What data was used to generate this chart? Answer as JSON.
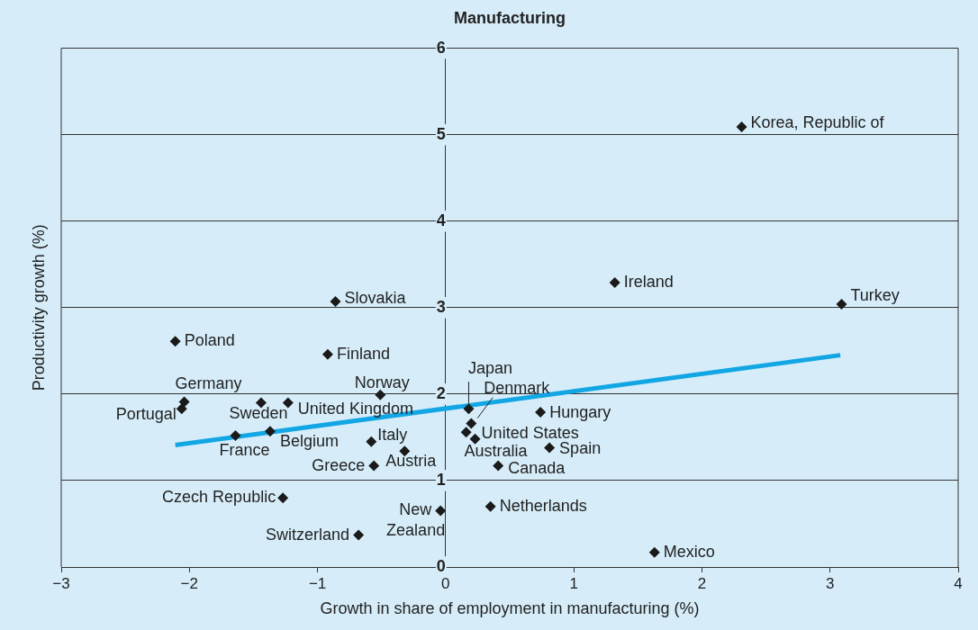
{
  "chart_data": {
    "type": "scatter",
    "title": "Manufacturing",
    "xlabel": "Growth in share of employment in manufacturing (%)",
    "ylabel": "Productivity growth (%)",
    "xlim": [
      -3,
      4
    ],
    "xticks": [
      -3,
      -2,
      -1,
      0,
      1,
      2,
      3,
      4
    ],
    "ylim": [
      0,
      6
    ],
    "yticks": [
      0,
      1,
      2,
      3,
      4,
      5,
      6
    ],
    "grid": "y",
    "legend": false,
    "marker": "diamond",
    "series": [
      {
        "color": "#1a1a1a",
        "x": [
          2.31,
          1.32,
          3.09,
          -0.86,
          -2.11,
          -0.92,
          -2.04,
          -2.06,
          -1.44,
          -1.23,
          -0.51,
          -1.64,
          -1.37,
          -0.58,
          -0.32,
          -0.56,
          -1.27,
          -0.68,
          -0.04,
          0.18,
          0.2,
          0.16,
          0.23,
          0.74,
          0.81,
          0.41,
          0.35,
          1.63
        ],
        "values": [
          5.09,
          3.29,
          3.04,
          3.07,
          2.61,
          2.46,
          1.91,
          1.83,
          1.9,
          1.9,
          1.99,
          1.52,
          1.57,
          1.45,
          1.34,
          1.17,
          0.8,
          0.37,
          0.65,
          1.83,
          1.66,
          1.56,
          1.48,
          1.79,
          1.38,
          1.17,
          0.7,
          0.17
        ]
      },
      {
        "type": "line",
        "marker": "none",
        "color": "#12a6e4",
        "x": [
          -2.11,
          3.08
        ],
        "values": [
          1.41,
          2.45
        ]
      }
    ],
    "annotations": [
      {
        "text": "Korea, Republic of",
        "x": 2.31,
        "y": 5.09
      },
      {
        "text": "Ireland",
        "x": 1.32,
        "y": 3.29
      },
      {
        "text": "Turkey",
        "x": 3.09,
        "y": 3.04
      },
      {
        "text": "Slovakia",
        "x": -0.86,
        "y": 3.07
      },
      {
        "text": "Poland",
        "x": -2.11,
        "y": 2.61
      },
      {
        "text": "Finland",
        "x": -0.92,
        "y": 2.46
      },
      {
        "text": "Germany",
        "x": -2.04,
        "y": 1.91
      },
      {
        "text": "Portugal",
        "x": -2.06,
        "y": 1.83
      },
      {
        "text": "Sweden",
        "x": -1.44,
        "y": 1.9
      },
      {
        "text": "United Kingdom",
        "x": -1.23,
        "y": 1.9
      },
      {
        "text": "Norway",
        "x": -0.51,
        "y": 1.99
      },
      {
        "text": "France",
        "x": -1.64,
        "y": 1.52
      },
      {
        "text": "Belgium",
        "x": -1.37,
        "y": 1.57
      },
      {
        "text": "Italy",
        "x": -0.58,
        "y": 1.45
      },
      {
        "text": "Austria",
        "x": -0.32,
        "y": 1.34
      },
      {
        "text": "Greece",
        "x": -0.56,
        "y": 1.17
      },
      {
        "text": "Czech Republic",
        "x": -1.27,
        "y": 0.8
      },
      {
        "text": "Switzerland",
        "x": -0.68,
        "y": 0.37
      },
      {
        "text": "New Zealand",
        "x": -0.04,
        "y": 0.65
      },
      {
        "text": "Japan",
        "x": 0.18,
        "y": 1.83
      },
      {
        "text": "Denmark",
        "x": 0.2,
        "y": 1.66
      },
      {
        "text": "United States",
        "x": 0.16,
        "y": 1.56
      },
      {
        "text": "Australia",
        "x": 0.23,
        "y": 1.48
      },
      {
        "text": "Hungary",
        "x": 0.74,
        "y": 1.79
      },
      {
        "text": "Spain",
        "x": 0.81,
        "y": 1.38
      },
      {
        "text": "Canada",
        "x": 0.41,
        "y": 1.17
      },
      {
        "text": "Netherlands",
        "x": 0.35,
        "y": 0.7
      },
      {
        "text": "Mexico",
        "x": 1.63,
        "y": 0.17
      }
    ]
  }
}
